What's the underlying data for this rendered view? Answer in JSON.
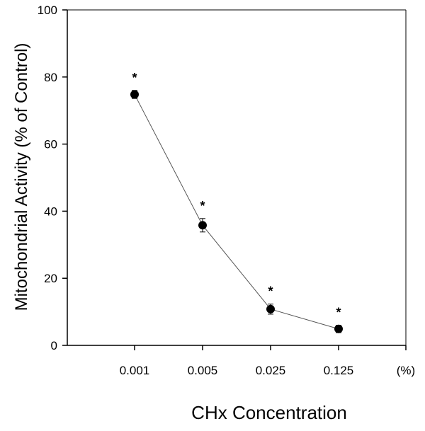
{
  "chart_data": {
    "type": "line",
    "title": "",
    "xlabel": "CHx Concentration",
    "ylabel": "Mitochondrial Activity (% of Control)",
    "categories": [
      "0.001",
      "0.005",
      "0.025",
      "0.125"
    ],
    "x_unit_label": "(%)",
    "ylim": [
      0,
      100
    ],
    "yticks": [
      "0",
      "20",
      "40",
      "60",
      "80",
      "100"
    ],
    "grid": false,
    "legend": "none",
    "series": [
      {
        "values": [
          74.8,
          35.8,
          10.8,
          4.9
        ],
        "errors": [
          1.2,
          2.0,
          1.5,
          1.1
        ],
        "annotations": [
          "*",
          "*",
          "*",
          "*"
        ]
      }
    ],
    "colors": {
      "line": "#555555",
      "marker": "#000000",
      "axis": "#000000"
    }
  }
}
